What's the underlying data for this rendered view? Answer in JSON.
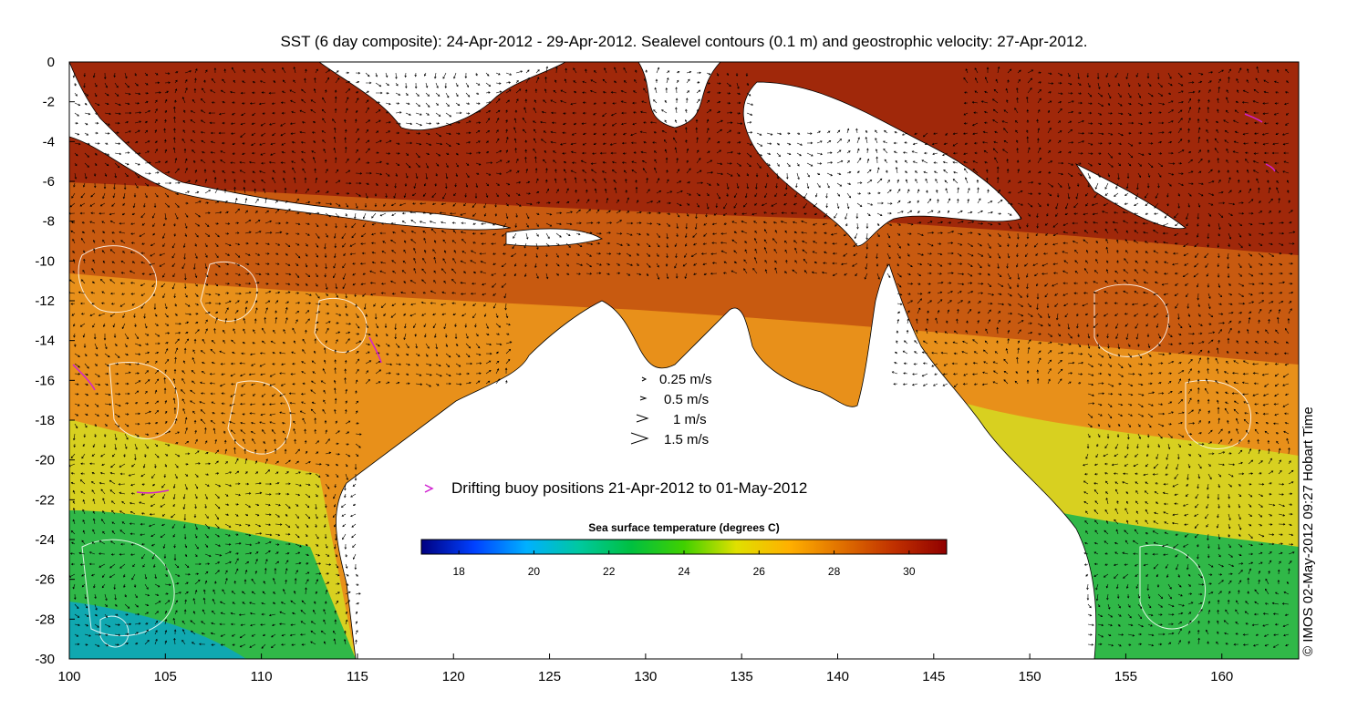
{
  "title": "SST (6 day composite): 24-Apr-2012 - 29-Apr-2012. Sealevel contours (0.1 m) and geostrophic velocity: 27-Apr-2012.",
  "copyright": "© IMOS 02-May-2012 09:27 Hobart Time",
  "axes": {
    "x_ticks": [
      "100",
      "105",
      "110",
      "115",
      "120",
      "125",
      "130",
      "135",
      "140",
      "145",
      "150",
      "155",
      "160"
    ],
    "y_ticks": [
      "0",
      "-2",
      "-4",
      "-6",
      "-8",
      "-10",
      "-12",
      "-14",
      "-16",
      "-18",
      "-20",
      "-22",
      "-24",
      "-26",
      "-28",
      "-30"
    ],
    "xlim": [
      100,
      164
    ],
    "ylim": [
      -30,
      0
    ]
  },
  "velocity_legend": {
    "items": [
      {
        "label": "0.25 m/s",
        "speed": 0.25
      },
      {
        "label": "0.5 m/s",
        "speed": 0.5
      },
      {
        "label": "1 m/s",
        "speed": 1
      },
      {
        "label": "1.5 m/s",
        "speed": 1.5
      }
    ]
  },
  "buoy_legend": {
    "label": "Drifting buoy positions 21-Apr-2012 to 01-May-2012",
    "color": "#d020d0"
  },
  "colorbar": {
    "title": "Sea surface temperature (degrees C)",
    "min": 17,
    "max": 31,
    "ticks": [
      "18",
      "20",
      "22",
      "24",
      "26",
      "28",
      "30"
    ],
    "stops": [
      "#000080",
      "#0040ff",
      "#00b0ff",
      "#00c8a0",
      "#00c040",
      "#40d000",
      "#e0e000",
      "#ffb000",
      "#e07000",
      "#c03000",
      "#900000"
    ]
  },
  "colors": {
    "land": "#ffffff",
    "warm_sea": "#c85a10",
    "hot_sea": "#a0280a",
    "orange_sea": "#e8901a",
    "yellow_sea": "#d8d020",
    "green_sea": "#30b848",
    "cool_sea": "#10a8b0",
    "contour": "#ffffff",
    "arrow": "#000000"
  }
}
